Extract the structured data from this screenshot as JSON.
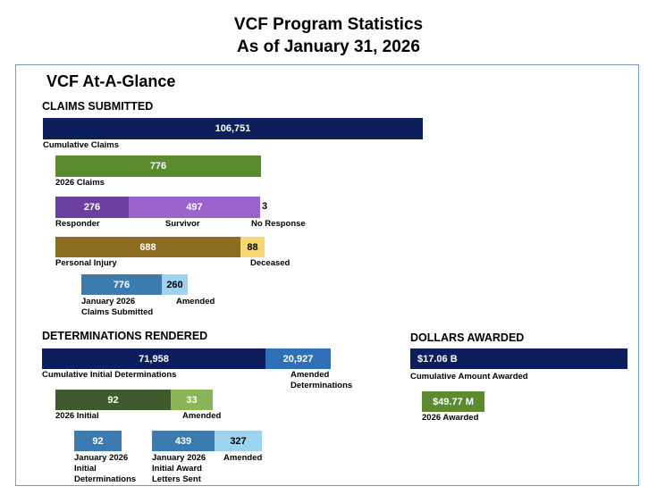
{
  "page": {
    "title_line1": "VCF Program Statistics",
    "title_line2": "As of January 31, 2026",
    "panel_title": "VCF At-A-Glance"
  },
  "sections": {
    "claims": "CLAIMS SUBMITTED",
    "determinations": "DETERMINATIONS RENDERED",
    "dollars": "DOLLARS AWARDED"
  },
  "colors": {
    "navy": "#0c1f5c",
    "green": "#5b8a2f",
    "dark_green": "#3f5a2c",
    "green_light": "#8ab458",
    "purple_dark": "#6a3fa0",
    "purple": "#9a64cc",
    "gold": "#8c6b22",
    "yellow": "#f7d774",
    "steel_blue": "#3c7bb0",
    "light_blue": "#9dd3ee",
    "blue": "#2e6fb5"
  },
  "chart_data": [
    {
      "type": "bar",
      "group": "claims",
      "categories": [
        "Cumulative Claims"
      ],
      "values": [
        "106,751"
      ]
    },
    {
      "type": "bar",
      "group": "claims",
      "categories": [
        "2026 Claims"
      ],
      "values": [
        "776"
      ]
    },
    {
      "type": "bar",
      "group": "claims",
      "stacked": true,
      "categories": [
        "Responder",
        "Survivor",
        "No Response"
      ],
      "values": [
        "276",
        "497",
        "3"
      ]
    },
    {
      "type": "bar",
      "group": "claims",
      "stacked": true,
      "categories": [
        "Personal Injury",
        "Deceased"
      ],
      "values": [
        "688",
        "88"
      ]
    },
    {
      "type": "bar",
      "group": "claims",
      "stacked": true,
      "categories": [
        "January 2026 Claims Submitted",
        "Amended"
      ],
      "category_lines": [
        [
          "January 2026",
          "Claims Submitted"
        ],
        [
          "Amended"
        ]
      ],
      "values": [
        "776",
        "260"
      ]
    },
    {
      "type": "bar",
      "group": "determinations",
      "stacked": true,
      "categories": [
        "Cumulative Initial Determinations",
        "Amended Determinations"
      ],
      "category_lines": [
        [
          "Cumulative Initial Determinations"
        ],
        [
          "Amended",
          "Determinations"
        ]
      ],
      "values": [
        "71,958",
        "20,927"
      ]
    },
    {
      "type": "bar",
      "group": "determinations",
      "stacked": true,
      "categories": [
        "2026 Initial",
        "Amended"
      ],
      "values": [
        "92",
        "33"
      ]
    },
    {
      "type": "bar",
      "group": "determinations",
      "categories": [
        "January 2026 Initial Determinations"
      ],
      "category_lines": [
        [
          "January 2026",
          "Initial",
          "Determinations"
        ]
      ],
      "values": [
        "92"
      ]
    },
    {
      "type": "bar",
      "group": "determinations",
      "stacked": true,
      "categories": [
        "January 2026 Initial Award Letters Sent",
        "Amended"
      ],
      "category_lines": [
        [
          "January 2026",
          "Initial Award",
          "Letters Sent"
        ],
        [
          "Amended"
        ]
      ],
      "values": [
        "439",
        "327"
      ]
    },
    {
      "type": "bar",
      "group": "dollars",
      "categories": [
        "Cumulative Amount Awarded"
      ],
      "values": [
        "$17.06 B"
      ]
    },
    {
      "type": "bar",
      "group": "dollars",
      "categories": [
        "2026 Awarded"
      ],
      "values": [
        "$49.77  M"
      ]
    }
  ]
}
